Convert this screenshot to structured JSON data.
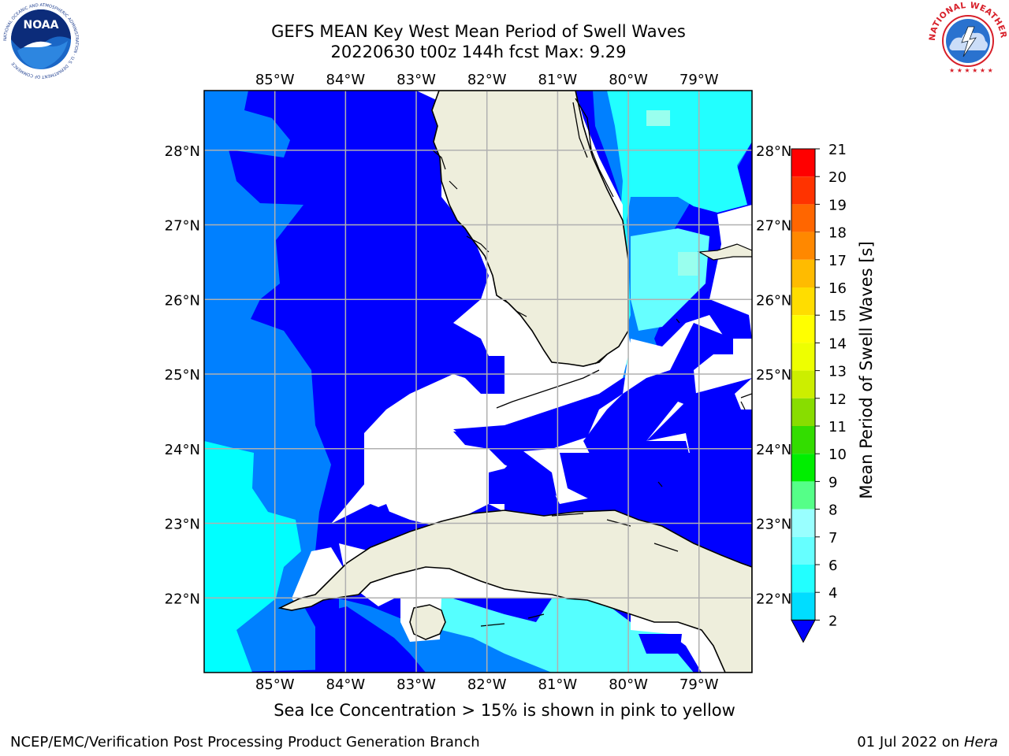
{
  "header": {
    "title_line1": "GEFS MEAN Key West Mean Period of Swell Waves",
    "title_line2": "20220630 t00z 144h fcst   Max: 9.29"
  },
  "map": {
    "lon_labels": [
      "85°W",
      "84°W",
      "83°W",
      "82°W",
      "81°W",
      "80°W",
      "79°W"
    ],
    "lat_labels": [
      "28°N",
      "27°N",
      "26°N",
      "25°N",
      "24°N",
      "23°N",
      "22°N"
    ],
    "extent": {
      "lon": [
        -86.0,
        -78.25
      ],
      "lat": [
        21.0,
        28.8
      ]
    },
    "colors": {
      "land": "#eeeedc",
      "deep_blue": "#0000ff",
      "mid_blue": "#0080ff",
      "cyan": "#00ffff",
      "light_cyan": "#55ffff",
      "pale_cyan": "#99ffee",
      "nodata": "#ffffff",
      "grid": "#b0b0b0"
    }
  },
  "colorbar": {
    "label": "Mean Period of Swell Waves [s]",
    "ticks": [
      "2",
      "4",
      "6",
      "7",
      "8",
      "9",
      "10",
      "11",
      "12",
      "13",
      "14",
      "15",
      "16",
      "17",
      "18",
      "19",
      "20",
      "21"
    ],
    "colors": [
      "#0070ff",
      "#00ddff",
      "#22ffff",
      "#66ffff",
      "#99ffff",
      "#55ff88",
      "#00ee00",
      "#33dd00",
      "#88dd00",
      "#ccee00",
      "#eeff00",
      "#ffff00",
      "#ffdd00",
      "#ffbb00",
      "#ff8800",
      "#ff6600",
      "#ff3300",
      "#ff0000"
    ],
    "underflow_color": "#0000ff"
  },
  "footer": {
    "note": "Sea Ice Concentration > 15% is shown in pink to yellow",
    "branch": "NCEP/EMC/Verification Post Processing Product Generation Branch",
    "date": "01 Jul 2022 on ",
    "host": "Hera"
  },
  "logos": {
    "noaa_text": "NOAA",
    "noaa_ring_text": "NATIONAL OCEANIC AND ATMOSPHERIC ADMINISTRATION · U.S. DEPARTMENT OF COMMERCE",
    "nws_ring_text": "NATIONAL WEATHER SERVICE"
  }
}
